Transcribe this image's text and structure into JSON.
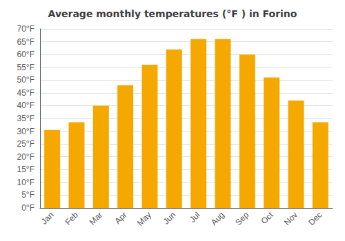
{
  "chart_data": {
    "type": "bar",
    "title": "Average monthly temperatures (°F ) in Forino",
    "categories": [
      "Jan",
      "Feb",
      "Mar",
      "Apr",
      "May",
      "Jun",
      "Jul",
      "Aug",
      "Sep",
      "Oct",
      "Nov",
      "Dec"
    ],
    "values": [
      30.5,
      33.5,
      40.0,
      48.0,
      56.0,
      62.0,
      66.0,
      66.0,
      60.0,
      51.0,
      42.0,
      33.5
    ],
    "color": "#F5A800",
    "ylim": [
      0,
      70
    ],
    "yticks": [
      {
        "value": 0,
        "label": "0°F"
      },
      {
        "value": 5,
        "label": "5°F"
      },
      {
        "value": 10,
        "label": "10°F"
      },
      {
        "value": 15,
        "label": "15°F"
      },
      {
        "value": 20,
        "label": "20°F"
      },
      {
        "value": 25,
        "label": "25°F"
      },
      {
        "value": 30,
        "label": "30°F"
      },
      {
        "value": 35,
        "label": "35°F"
      },
      {
        "value": 40,
        "label": "40°F"
      },
      {
        "value": 45,
        "label": "45°F"
      },
      {
        "value": 50,
        "label": "50°F"
      },
      {
        "value": 55,
        "label": "55°F"
      },
      {
        "value": 60,
        "label": "60°F"
      },
      {
        "value": 65,
        "label": "65°F"
      },
      {
        "value": 70,
        "label": "70°F"
      }
    ],
    "grid": true
  }
}
